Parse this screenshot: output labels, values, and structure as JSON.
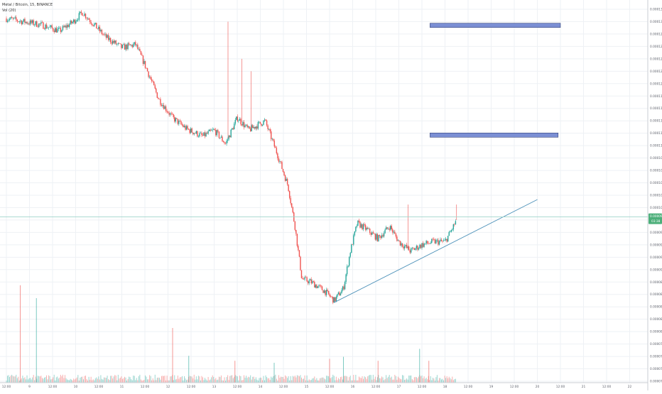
{
  "legend": {
    "symbol_line": "Metal / Bitcoin, 15, BINANCE",
    "indicator_line": "Vol (20)"
  },
  "colors": {
    "up": "#26a69a",
    "down": "#ef5350",
    "grid": "#eef1f5",
    "axis_text": "#5d606b",
    "trendline": "#4a90b8",
    "zone_fill": "#7b8fd4",
    "zone_stroke": "#34437a",
    "price_line": "#9fd4cc",
    "price_tag": "#4caf7a"
  },
  "chart_data": {
    "type": "candlestick",
    "symbol": "Metal / Bitcoin, 15, BINANCE",
    "indicator": "Vol (20)",
    "x_tick_labels": [
      "12:00",
      "9",
      "12:00",
      "10",
      "12:00",
      "11",
      "12:00",
      "12",
      "12:00",
      "13",
      "12:00",
      "14",
      "12:00",
      "15",
      "12:00",
      "16",
      "12:00",
      "17",
      "12:00",
      "18",
      "12:00",
      "19",
      "12:00",
      "20",
      "12:00",
      "21",
      "12:00",
      "22"
    ],
    "y_tick_labels": [
      "0.0001320",
      "0.0001300",
      "0.0001280",
      "0.0001260",
      "0.0001240",
      "0.0001220",
      "0.0001200",
      "0.0001180",
      "0.0001160",
      "0.0001140",
      "0.0001120",
      "0.0001100",
      "0.0001080",
      "0.0001060",
      "0.0001040",
      "0.0001020",
      "0.0001000",
      "0.0000980",
      "0.0000960",
      "0.0000940",
      "0.0000920",
      "0.0000900",
      "0.0000880",
      "0.0000860",
      "0.0000840",
      "0.0000820",
      "0.0000800",
      "0.0000780",
      "0.0000760",
      "0.0000740",
      "0.0000720"
    ],
    "y_ticks": [
      0.000132,
      0.00013,
      0.000128,
      0.000126,
      0.000124,
      0.000122,
      0.00012,
      0.000118,
      0.000116,
      0.000114,
      0.000112,
      0.00011,
      0.000108,
      0.000106,
      0.000104,
      0.000102,
      0.0001,
      9.8e-05,
      9.6e-05,
      9.4e-05,
      9.2e-05,
      9e-05,
      8.8e-05,
      8.6e-05,
      8.4e-05,
      8.2e-05,
      8e-05,
      7.8e-05,
      7.6e-05,
      7.4e-05,
      7.2e-05
    ],
    "ylim": [
      7.15e-05,
      0.000133
    ],
    "x_ticks_count": 28,
    "last_price": 9.85e-05,
    "last_price_label": "0.0000985",
    "countdown_label": "03:38",
    "price_path": [
      {
        "x": 0,
        "y": 0.0001305
      },
      {
        "x": 1.5,
        "y": 0.0001295
      },
      {
        "x": 2.3,
        "y": 0.0001285
      },
      {
        "x": 2.9,
        "y": 0.00013
      },
      {
        "x": 3.3,
        "y": 0.0001315
      },
      {
        "x": 3.8,
        "y": 0.0001295
      },
      {
        "x": 4.3,
        "y": 0.0001275
      },
      {
        "x": 5.0,
        "y": 0.0001258
      },
      {
        "x": 5.6,
        "y": 0.0001263
      },
      {
        "x": 6.0,
        "y": 0.000123
      },
      {
        "x": 6.6,
        "y": 0.0001175
      },
      {
        "x": 7.2,
        "y": 0.0001145
      },
      {
        "x": 7.8,
        "y": 0.0001127
      },
      {
        "x": 8.5,
        "y": 0.0001115
      },
      {
        "x": 9.0,
        "y": 0.0001125
      },
      {
        "x": 9.5,
        "y": 0.0001103
      },
      {
        "x": 10.0,
        "y": 0.0001145
      },
      {
        "x": 10.5,
        "y": 0.0001125
      },
      {
        "x": 11.2,
        "y": 0.000114
      },
      {
        "x": 11.7,
        "y": 0.000109
      },
      {
        "x": 12.2,
        "y": 0.0001035
      },
      {
        "x": 12.5,
        "y": 9.7e-05
      },
      {
        "x": 12.8,
        "y": 8.85e-05
      },
      {
        "x": 13.2,
        "y": 8.8e-05
      },
      {
        "x": 13.8,
        "y": 8.65e-05
      },
      {
        "x": 14.2,
        "y": 8.5e-05
      },
      {
        "x": 14.6,
        "y": 8.7e-05
      },
      {
        "x": 14.9,
        "y": 9.3e-05
      },
      {
        "x": 15.2,
        "y": 9.75e-05
      },
      {
        "x": 15.6,
        "y": 9.65e-05
      },
      {
        "x": 16.1,
        "y": 9.5e-05
      },
      {
        "x": 16.6,
        "y": 9.7e-05
      },
      {
        "x": 17.0,
        "y": 9.45e-05
      },
      {
        "x": 17.5,
        "y": 9.3e-05
      },
      {
        "x": 18.0,
        "y": 9.4e-05
      },
      {
        "x": 18.5,
        "y": 9.45e-05
      },
      {
        "x": 19.0,
        "y": 9.45e-05
      },
      {
        "x": 19.3,
        "y": 9.65e-05
      },
      {
        "x": 19.5,
        "y": 9.8e-05
      }
    ],
    "trendline": {
      "x1": 14.2,
      "y1": 8.47e-05,
      "x2": 23.0,
      "y2": 0.0001013
    },
    "zones": [
      {
        "x1": 18.35,
        "x2": 24.0,
        "y": 0.0001294
      },
      {
        "x1": 18.35,
        "x2": 23.9,
        "y": 0.0001117
      }
    ],
    "volume_spikes": [
      {
        "x": 0.6,
        "v": 0.98
      },
      {
        "x": 1.3,
        "v": 0.85
      },
      {
        "x": 7.2,
        "v": 0.55
      },
      {
        "x": 7.9,
        "v": 0.27
      },
      {
        "x": 9.9,
        "v": 0.22
      },
      {
        "x": 11.6,
        "v": 0.2
      },
      {
        "x": 14.0,
        "v": 0.24
      },
      {
        "x": 14.6,
        "v": 0.26
      },
      {
        "x": 16.1,
        "v": 0.22
      },
      {
        "x": 17.9,
        "v": 0.34
      },
      {
        "x": 18.3,
        "v": 0.22
      }
    ]
  }
}
